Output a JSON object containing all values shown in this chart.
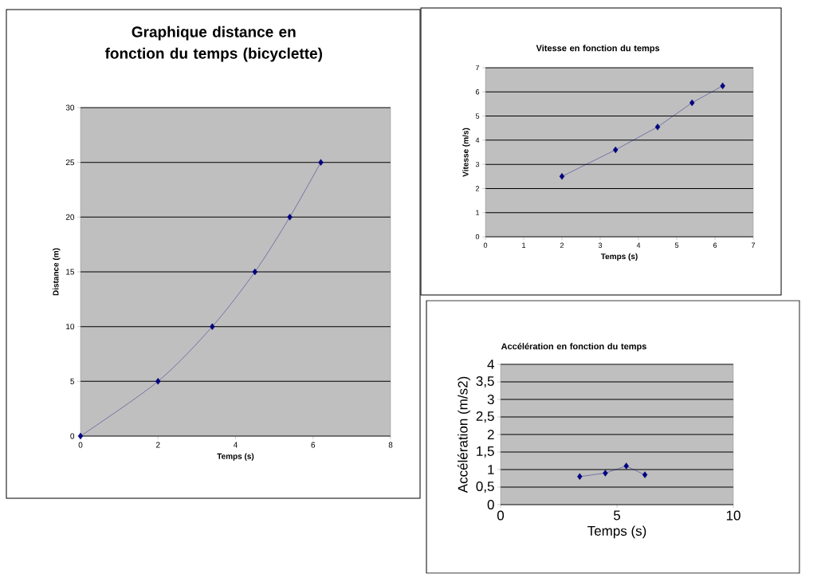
{
  "chart_data": [
    {
      "type": "line",
      "title": "Graphique distance en fonction du temps (bicyclette)",
      "xlabel": "Temps (s)",
      "ylabel": "Distance (m)",
      "x": [
        0,
        2,
        3.4,
        4.5,
        5.4,
        6.2
      ],
      "series": [
        {
          "color": "#000080",
          "values": [
            0,
            5,
            10,
            15,
            20,
            25
          ]
        }
      ],
      "xlim": [
        0,
        8
      ],
      "ylim": [
        0,
        30
      ],
      "xticks": [
        0,
        2,
        4,
        6,
        8
      ],
      "yticks": [
        0,
        5,
        10,
        15,
        20,
        25,
        30
      ],
      "grid": "y",
      "marker": "diamond",
      "line_style": "solid"
    },
    {
      "type": "line",
      "title": "Vitesse en fonction du temps",
      "xlabel": "Temps (s)",
      "ylabel": "Vitesse (m/s)",
      "x": [
        2,
        3.4,
        4.5,
        5.4,
        6.2
      ],
      "series": [
        {
          "color": "#000080",
          "values": [
            2.5,
            3.6,
            4.55,
            5.55,
            6.25
          ]
        }
      ],
      "xlim": [
        0,
        7
      ],
      "ylim": [
        0,
        7
      ],
      "xticks": [
        0,
        1,
        2,
        3,
        4,
        5,
        6,
        7
      ],
      "yticks": [
        0,
        1,
        2,
        3,
        4,
        5,
        6,
        7
      ],
      "grid": "y",
      "marker": "diamond",
      "line_style": "solid"
    },
    {
      "type": "line",
      "title": "Accélération en fonction du temps",
      "xlabel": "Temps (s)",
      "ylabel": "Accélération (m/s2)",
      "x": [
        3.4,
        4.5,
        5.4,
        6.2
      ],
      "series": [
        {
          "color": "#000080",
          "values": [
            0.8,
            0.9,
            1.1,
            0.85
          ]
        }
      ],
      "xlim": [
        0,
        10
      ],
      "ylim": [
        0,
        4
      ],
      "xticks": [
        0,
        5,
        10
      ],
      "yticks": [
        0,
        {
          "value": 0.5,
          "label": "0,5"
        },
        1,
        {
          "value": 1.5,
          "label": "1,5"
        },
        2,
        {
          "value": 2.5,
          "label": "2,5"
        },
        3,
        {
          "value": 3.5,
          "label": "3,5"
        },
        4
      ],
      "grid": "y",
      "marker": "diamond",
      "line_style": "solid"
    }
  ]
}
